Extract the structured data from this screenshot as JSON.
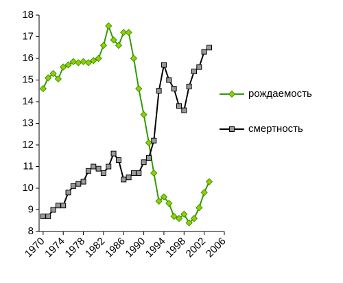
{
  "chart_data": {
    "type": "line",
    "x": [
      1970,
      1971,
      1972,
      1973,
      1974,
      1975,
      1976,
      1977,
      1978,
      1979,
      1980,
      1981,
      1982,
      1983,
      1984,
      1985,
      1986,
      1987,
      1988,
      1989,
      1990,
      1991,
      1992,
      1993,
      1994,
      1995,
      1996,
      1997,
      1998,
      1999,
      2000,
      2001,
      2002,
      2003
    ],
    "series": [
      {
        "name": "рождаемость",
        "color": "#339900",
        "marker_color": "#99cc00",
        "values": [
          14.6,
          15.1,
          15.3,
          15.05,
          15.6,
          15.7,
          15.85,
          15.8,
          15.85,
          15.8,
          15.9,
          16.0,
          16.6,
          17.5,
          16.85,
          16.6,
          17.2,
          17.2,
          16.0,
          14.6,
          13.4,
          12.1,
          10.7,
          9.4,
          9.6,
          9.3,
          8.7,
          8.6,
          8.8,
          8.4,
          8.6,
          9.1,
          9.8,
          10.3
        ]
      },
      {
        "name": "смертность",
        "color": "#000000",
        "marker_color": "#999999",
        "values": [
          8.7,
          8.7,
          9.0,
          9.2,
          9.2,
          9.8,
          10.1,
          10.2,
          10.3,
          10.8,
          11.0,
          10.9,
          10.7,
          11.0,
          11.6,
          11.3,
          10.4,
          10.5,
          10.7,
          10.7,
          11.2,
          11.4,
          12.2,
          14.5,
          15.7,
          15.0,
          14.6,
          13.8,
          13.6,
          14.7,
          15.4,
          15.6,
          16.3,
          16.5
        ]
      }
    ],
    "xlim": [
      1969.2,
      2006
    ],
    "xticks": [
      1970,
      1974,
      1978,
      1982,
      1986,
      1990,
      1994,
      1998,
      2002,
      2006
    ],
    "ylim": [
      8,
      18
    ],
    "yticks": [
      8,
      9,
      10,
      11,
      12,
      13,
      14,
      15,
      16,
      17,
      18
    ],
    "legend": "right"
  }
}
